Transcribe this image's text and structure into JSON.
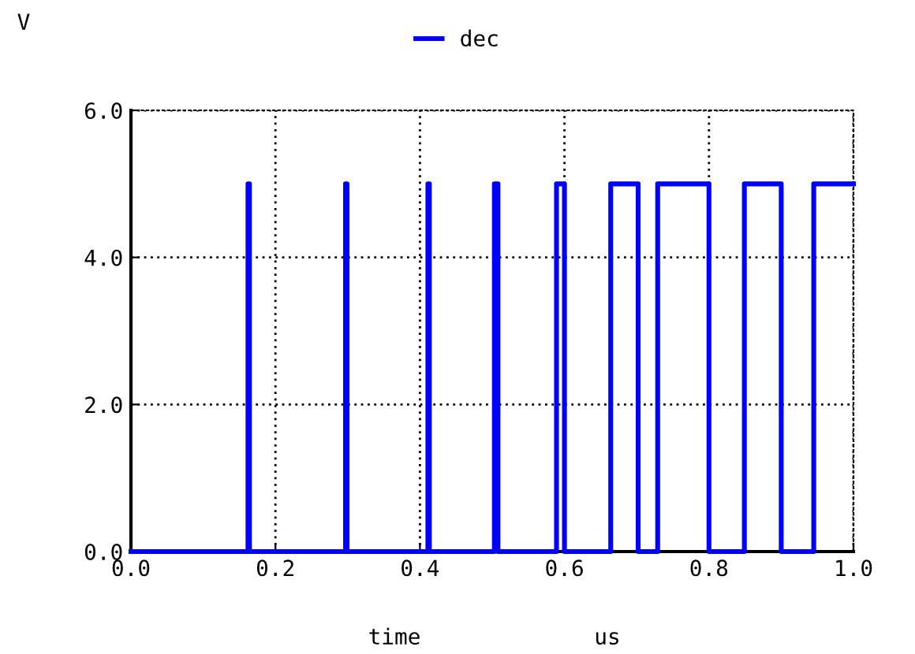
{
  "chart_data": {
    "type": "line",
    "ylabel": "V",
    "xlabel": "time",
    "annotations": [
      "us"
    ],
    "series": [
      {
        "name": "dec",
        "color": "#0000ff",
        "x": [
          0,
          0.162,
          0.162,
          0.164,
          0.164,
          0.297,
          0.297,
          0.299,
          0.299,
          0.411,
          0.411,
          0.413,
          0.413,
          0.503,
          0.503,
          0.508,
          0.508,
          0.589,
          0.589,
          0.6,
          0.6,
          0.664,
          0.664,
          0.702,
          0.702,
          0.729,
          0.729,
          0.8,
          0.8,
          0.849,
          0.849,
          0.9,
          0.9,
          0.945,
          0.945,
          1.0
        ],
        "values": [
          0,
          0,
          5,
          5,
          0,
          0,
          5,
          5,
          0,
          0,
          5,
          5,
          0,
          0,
          5,
          5,
          0,
          0,
          5,
          5,
          0,
          0,
          5,
          5,
          0,
          0,
          5,
          5,
          0,
          0,
          5,
          5,
          0,
          0,
          5,
          5
        ]
      }
    ],
    "xlim": [
      0,
      1.0
    ],
    "ylim": [
      0,
      6.0
    ],
    "xticks": [
      {
        "value": 0,
        "label": "0.0"
      },
      {
        "value": 0.2,
        "label": "0.2"
      },
      {
        "value": 0.4,
        "label": "0.4"
      },
      {
        "value": 0.6,
        "label": "0.6"
      },
      {
        "value": 0.8,
        "label": "0.8"
      },
      {
        "value": 1.0,
        "label": "1.0"
      }
    ],
    "yticks": [
      {
        "value": 0,
        "label": "0.0"
      },
      {
        "value": 2,
        "label": "2.0"
      },
      {
        "value": 4,
        "label": "4.0"
      },
      {
        "value": 6,
        "label": "6.0"
      }
    ],
    "grid": true,
    "legend": "top",
    "line_style": "solid"
  }
}
